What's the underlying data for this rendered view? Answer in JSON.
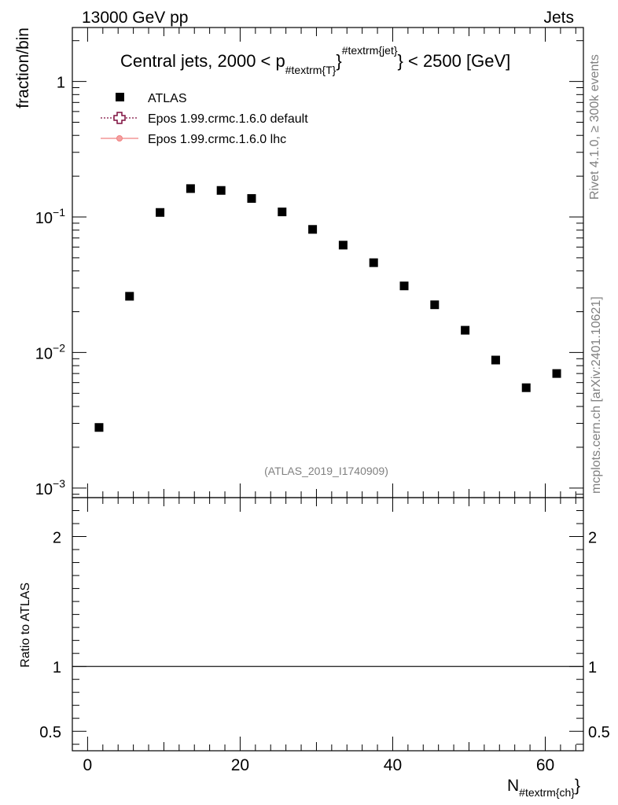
{
  "header": {
    "left": "13000 GeV pp",
    "right": "Jets"
  },
  "side": {
    "rivet": "Rivet 4.1.0, ≥ 300k events",
    "mcplots": "mcplots.cern.ch [arXiv:2401.10621]"
  },
  "chart_data": {
    "type": "scatter",
    "title_parts": {
      "a": "Central jets, 2000 < p",
      "sub": "#textrm{T}",
      "sup": "#textrm{jet}",
      "b": "} < 2500 [GeV]"
    },
    "analysis_tag": "(ATLAS_2019_I1740909)",
    "xlabel": "N",
    "xlabel_sub": "#textrm{ch}",
    "ylabel": "fraction/bin",
    "ratio_ylabel": "Ratio to ATLAS",
    "xlim": [
      -2,
      65
    ],
    "ylim": [
      0.00085,
      2.5
    ],
    "ratio_ylim": [
      0.35,
      2.3
    ],
    "x_ticks": [
      0,
      20,
      40,
      60
    ],
    "x_tick_labels": [
      "0",
      "20",
      "40",
      "60"
    ],
    "y_ticks": [
      0.001,
      0.01,
      0.1,
      1
    ],
    "y_tick_labels": [
      {
        "base": "10",
        "exp": "−3"
      },
      {
        "base": "10",
        "exp": "−2"
      },
      {
        "base": "10",
        "exp": "−1"
      },
      {
        "base": "1",
        "exp": ""
      }
    ],
    "ratio_ticks": [
      0.5,
      1,
      2
    ],
    "ratio_tick_labels": [
      "0.5",
      "1",
      "2"
    ],
    "legend": [
      {
        "label": "ATLAS",
        "marker": "square",
        "color": "#000000"
      },
      {
        "label": "Epos 1.99.crmc.1.6.0 default",
        "marker": "cross",
        "color": "#7f0f3f"
      },
      {
        "label": "Epos 1.99.crmc.1.6.0 lhc",
        "marker": "line-dot",
        "color": "#f08080"
      }
    ],
    "series": [
      {
        "name": "ATLAS",
        "x": [
          1.5,
          5.5,
          9.5,
          13.5,
          17.5,
          21.5,
          25.5,
          29.5,
          33.5,
          37.5,
          41.5,
          45.5,
          49.5,
          53.5,
          57.5,
          61.5
        ],
        "y": [
          0.0028,
          0.026,
          0.108,
          0.162,
          0.157,
          0.137,
          0.109,
          0.081,
          0.062,
          0.046,
          0.031,
          0.0225,
          0.0146,
          0.0088,
          0.0055,
          0.007
        ]
      }
    ],
    "ratio_reference": 1
  }
}
